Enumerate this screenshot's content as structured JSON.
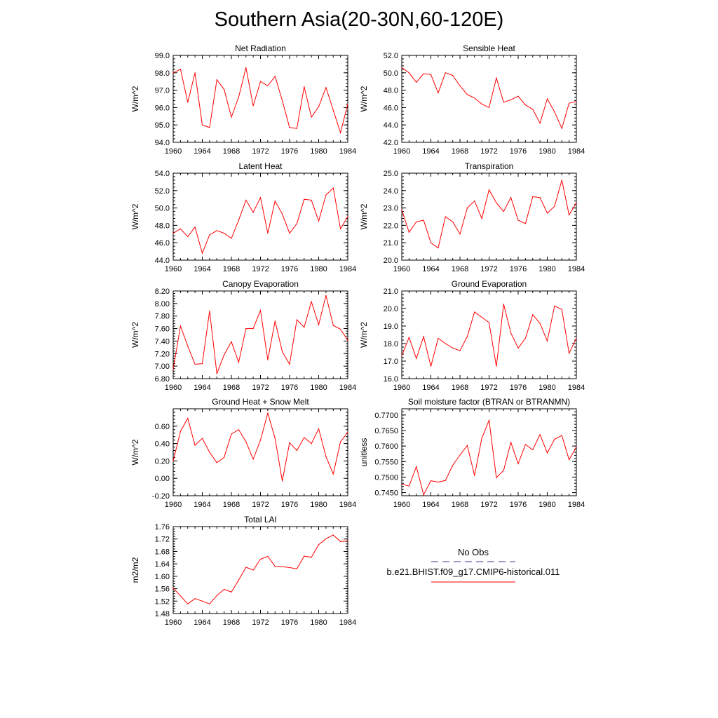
{
  "title": "Southern Asia(20-30N,60-120E)",
  "colors": {
    "series": "#ff0000",
    "obs": "#3a3aa0"
  },
  "legend": {
    "obs_label": "No Obs",
    "model_label": "b.e21.BHIST.f09_g17.CMIP6-historical.011"
  },
  "chart_data": [
    {
      "type": "line",
      "title": "Net Radiation",
      "ylabel": "W/m^2",
      "xlim": [
        1960,
        1984
      ],
      "ylim": [
        94.0,
        99.0
      ],
      "xticks": [
        "1960",
        "1964",
        "1968",
        "1972",
        "1976",
        "1980",
        "1984"
      ],
      "yticks": [
        "94.0",
        "95.0",
        "96.0",
        "97.0",
        "98.0",
        "99.0"
      ],
      "x": [
        1960,
        1961,
        1962,
        1963,
        1964,
        1965,
        1966,
        1967,
        1968,
        1969,
        1970,
        1971,
        1972,
        1973,
        1974,
        1975,
        1976,
        1977,
        1978,
        1979,
        1980,
        1981,
        1982,
        1983,
        1984
      ],
      "y": [
        98.0,
        98.2,
        96.3,
        98.0,
        95.0,
        94.85,
        97.6,
        97.05,
        95.45,
        96.6,
        98.3,
        96.1,
        97.5,
        97.25,
        97.8,
        96.4,
        94.85,
        94.8,
        97.2,
        95.45,
        96.05,
        97.15,
        95.85,
        94.55,
        96.2
      ]
    },
    {
      "type": "line",
      "title": "Sensible Heat",
      "ylabel": "W/m^2",
      "xlim": [
        1960,
        1984
      ],
      "ylim": [
        42.0,
        52.0
      ],
      "xticks": [
        "1960",
        "1964",
        "1968",
        "1972",
        "1976",
        "1980",
        "1984"
      ],
      "yticks": [
        "42.0",
        "44.0",
        "46.0",
        "48.0",
        "50.0",
        "52.0"
      ],
      "x": [
        1960,
        1961,
        1962,
        1963,
        1964,
        1965,
        1966,
        1967,
        1968,
        1969,
        1970,
        1971,
        1972,
        1973,
        1974,
        1975,
        1976,
        1977,
        1978,
        1979,
        1980,
        1981,
        1982,
        1983,
        1984
      ],
      "y": [
        50.6,
        50.0,
        48.9,
        49.9,
        49.8,
        47.7,
        50.0,
        49.7,
        48.5,
        47.5,
        47.1,
        46.4,
        46.0,
        49.4,
        46.6,
        46.9,
        47.3,
        46.3,
        45.8,
        44.2,
        47.0,
        45.5,
        43.6,
        46.5,
        46.7
      ]
    },
    {
      "type": "line",
      "title": "Latent Heat",
      "ylabel": "W/m^2",
      "xlim": [
        1960,
        1984
      ],
      "ylim": [
        44.0,
        54.0
      ],
      "xticks": [
        "1960",
        "1964",
        "1968",
        "1972",
        "1976",
        "1980",
        "1984"
      ],
      "yticks": [
        "44.0",
        "46.0",
        "48.0",
        "50.0",
        "52.0",
        "54.0"
      ],
      "x": [
        1960,
        1961,
        1962,
        1963,
        1964,
        1965,
        1966,
        1967,
        1968,
        1969,
        1970,
        1971,
        1972,
        1973,
        1974,
        1975,
        1976,
        1977,
        1978,
        1979,
        1980,
        1981,
        1982,
        1983,
        1984
      ],
      "y": [
        47.1,
        47.6,
        46.7,
        47.8,
        44.8,
        46.9,
        47.4,
        47.1,
        46.5,
        48.6,
        50.9,
        49.5,
        51.2,
        47.1,
        50.8,
        49.3,
        47.1,
        48.2,
        51.0,
        50.9,
        48.5,
        51.5,
        52.3,
        47.6,
        49.0
      ]
    },
    {
      "type": "line",
      "title": "Transpiration",
      "ylabel": "W/m^2",
      "xlim": [
        1960,
        1984
      ],
      "ylim": [
        20.0,
        25.0
      ],
      "xticks": [
        "1960",
        "1964",
        "1968",
        "1972",
        "1976",
        "1980",
        "1984"
      ],
      "yticks": [
        "20.0",
        "21.0",
        "22.0",
        "23.0",
        "24.0",
        "25.0"
      ],
      "x": [
        1960,
        1961,
        1962,
        1963,
        1964,
        1965,
        1966,
        1967,
        1968,
        1969,
        1970,
        1971,
        1972,
        1973,
        1974,
        1975,
        1976,
        1977,
        1978,
        1979,
        1980,
        1981,
        1982,
        1983,
        1984
      ],
      "y": [
        22.9,
        21.6,
        22.2,
        22.3,
        21.0,
        20.7,
        22.5,
        22.2,
        21.5,
        23.0,
        23.4,
        22.4,
        24.05,
        23.3,
        22.8,
        23.6,
        22.3,
        22.1,
        23.65,
        23.6,
        22.7,
        23.1,
        24.6,
        22.6,
        23.3
      ]
    },
    {
      "type": "line",
      "title": "Canopy Evaporation",
      "ylabel": "W/m^2",
      "xlim": [
        1960,
        1984
      ],
      "ylim": [
        6.8,
        8.2
      ],
      "xticks": [
        "1960",
        "1964",
        "1968",
        "1972",
        "1976",
        "1980",
        "1984"
      ],
      "yticks": [
        "6.80",
        "7.00",
        "7.20",
        "7.40",
        "7.60",
        "7.80",
        "8.00",
        "8.20"
      ],
      "x": [
        1960,
        1961,
        1962,
        1963,
        1964,
        1965,
        1966,
        1967,
        1968,
        1969,
        1970,
        1971,
        1972,
        1973,
        1974,
        1975,
        1976,
        1977,
        1978,
        1979,
        1980,
        1981,
        1982,
        1983,
        1984
      ],
      "y": [
        6.95,
        7.64,
        7.32,
        7.03,
        7.04,
        7.88,
        6.88,
        7.18,
        7.39,
        7.06,
        7.6,
        7.6,
        7.89,
        7.1,
        7.72,
        7.23,
        7.03,
        7.74,
        7.62,
        8.03,
        7.66,
        8.13,
        7.65,
        7.59,
        7.41
      ]
    },
    {
      "type": "line",
      "title": "Ground Evaporation",
      "ylabel": "W/m^2",
      "xlim": [
        1960,
        1984
      ],
      "ylim": [
        16.0,
        21.0
      ],
      "xticks": [
        "1960",
        "1964",
        "1968",
        "1972",
        "1976",
        "1980",
        "1984"
      ],
      "yticks": [
        "16.0",
        "17.0",
        "18.0",
        "19.0",
        "20.0",
        "21.0"
      ],
      "x": [
        1960,
        1961,
        1962,
        1963,
        1964,
        1965,
        1966,
        1967,
        1968,
        1969,
        1970,
        1971,
        1972,
        1973,
        1974,
        1975,
        1976,
        1977,
        1978,
        1979,
        1980,
        1981,
        1982,
        1983,
        1984
      ],
      "y": [
        17.3,
        18.35,
        17.15,
        18.4,
        16.7,
        18.3,
        18.0,
        17.75,
        17.6,
        18.4,
        19.8,
        19.5,
        19.2,
        16.7,
        20.25,
        18.6,
        17.75,
        18.3,
        19.65,
        19.15,
        18.15,
        20.15,
        19.95,
        17.45,
        18.3
      ]
    },
    {
      "type": "line",
      "title": "Ground Heat + Snow Melt",
      "ylabel": "W/m^2",
      "xlim": [
        1960,
        1984
      ],
      "ylim": [
        -0.2,
        0.8
      ],
      "xticks": [
        "1960",
        "1964",
        "1968",
        "1972",
        "1976",
        "1980",
        "1984"
      ],
      "yticks": [
        "-0.20",
        "0.00",
        "0.20",
        "0.40",
        "0.60"
      ],
      "x": [
        1960,
        1961,
        1962,
        1963,
        1964,
        1965,
        1966,
        1967,
        1968,
        1969,
        1970,
        1971,
        1972,
        1973,
        1974,
        1975,
        1976,
        1977,
        1978,
        1979,
        1980,
        1981,
        1982,
        1983,
        1984
      ],
      "y": [
        0.2,
        0.54,
        0.69,
        0.38,
        0.46,
        0.3,
        0.18,
        0.24,
        0.51,
        0.56,
        0.42,
        0.22,
        0.44,
        0.75,
        0.46,
        -0.03,
        0.41,
        0.32,
        0.47,
        0.4,
        0.57,
        0.25,
        0.05,
        0.42,
        0.53
      ]
    },
    {
      "type": "line",
      "title": "Soil moisture factor (BTRAN or BTRANMN)",
      "ylabel": "unitless",
      "xlim": [
        1960,
        1984
      ],
      "ylim": [
        0.744,
        0.772
      ],
      "xticks": [
        "1960",
        "1964",
        "1968",
        "1972",
        "1976",
        "1980",
        "1984"
      ],
      "yticks": [
        "0.7450",
        "0.7500",
        "0.7550",
        "0.7600",
        "0.7650",
        "0.7700"
      ],
      "x": [
        1960,
        1961,
        1962,
        1963,
        1964,
        1965,
        1966,
        1967,
        1968,
        1969,
        1970,
        1971,
        1972,
        1973,
        1974,
        1975,
        1976,
        1977,
        1978,
        1979,
        1980,
        1981,
        1982,
        1983,
        1984
      ],
      "y": [
        0.7478,
        0.7471,
        0.7534,
        0.7443,
        0.7488,
        0.7484,
        0.7489,
        0.7538,
        0.7571,
        0.7602,
        0.7505,
        0.7625,
        0.7683,
        0.7498,
        0.7522,
        0.7612,
        0.7543,
        0.7605,
        0.7588,
        0.7637,
        0.7578,
        0.7622,
        0.7634,
        0.7556,
        0.7597
      ]
    },
    {
      "type": "line",
      "title": "Total LAI",
      "ylabel": "m2/m2",
      "xlim": [
        1960,
        1984
      ],
      "ylim": [
        1.48,
        1.76
      ],
      "xticks": [
        "1960",
        "1964",
        "1968",
        "1972",
        "1976",
        "1980",
        "1984"
      ],
      "yticks": [
        "1.48",
        "1.52",
        "1.56",
        "1.60",
        "1.64",
        "1.68",
        "1.72",
        "1.76"
      ],
      "x": [
        1960,
        1961,
        1962,
        1963,
        1964,
        1965,
        1966,
        1967,
        1968,
        1969,
        1970,
        1971,
        1972,
        1973,
        1974,
        1975,
        1976,
        1977,
        1978,
        1979,
        1980,
        1981,
        1982,
        1983,
        1984
      ],
      "y": [
        1.562,
        1.537,
        1.511,
        1.528,
        1.52,
        1.511,
        1.538,
        1.558,
        1.549,
        1.588,
        1.629,
        1.62,
        1.655,
        1.664,
        1.632,
        1.631,
        1.628,
        1.624,
        1.665,
        1.661,
        1.702,
        1.721,
        1.733,
        1.712,
        1.714
      ]
    }
  ]
}
